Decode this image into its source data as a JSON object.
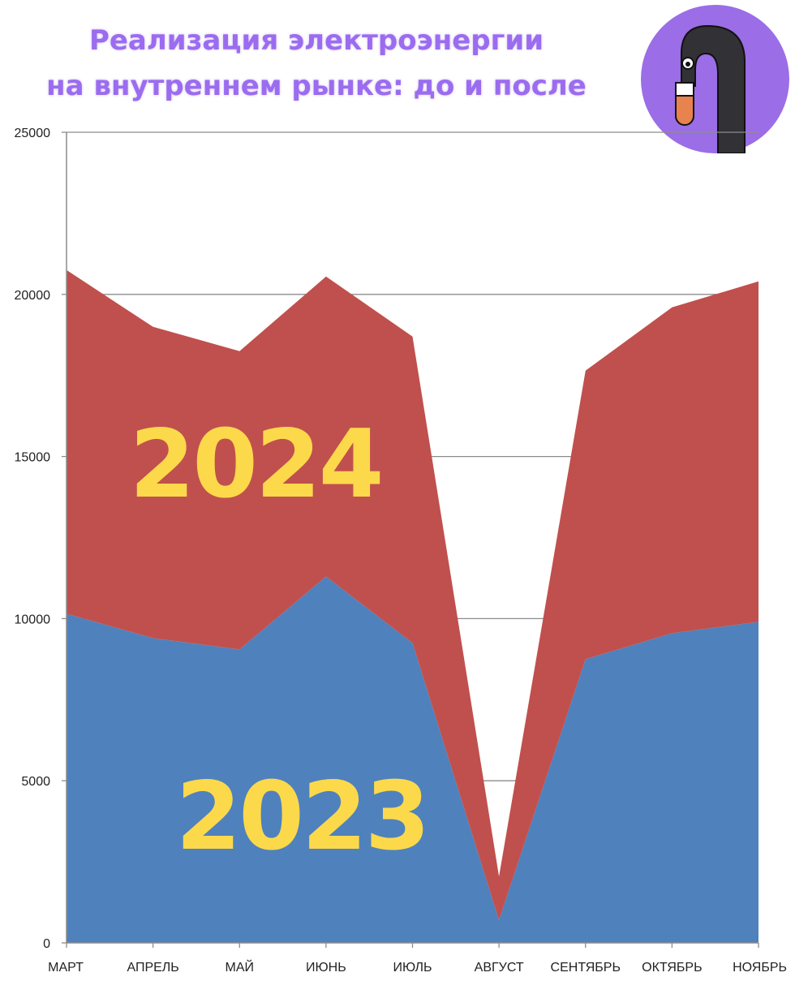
{
  "header": {
    "title_line1": "Реализация электроэнергии",
    "title_line2": "на внутреннем рынке: до и после"
  },
  "logo": {
    "icon": "flamingo-logo-icon",
    "circle_color": "#9b6de6"
  },
  "chart_data": {
    "type": "area",
    "stacked": true,
    "categories": [
      "МАРТ",
      "АПРЕЛЬ",
      "МАЙ",
      "ИЮНЬ",
      "ИЮЛЬ",
      "АВГУСТ",
      "СЕНТЯБРЬ",
      "ОКТЯБРЬ",
      "НОЯБРЬ"
    ],
    "series": [
      {
        "name": "2023",
        "color": "#4f81bd",
        "values": [
          10150,
          9400,
          9050,
          11300,
          9250,
          700,
          8750,
          9550,
          9900
        ]
      },
      {
        "name": "2024",
        "color": "#c0504d",
        "values": [
          10600,
          9600,
          9200,
          9250,
          9450,
          1350,
          8900,
          10050,
          10500
        ]
      }
    ],
    "ylim": [
      0,
      25000
    ],
    "yticks": [
      0,
      5000,
      10000,
      15000,
      20000,
      25000
    ],
    "grid": true,
    "label_color": "#fcd94b",
    "title": "Реализация электроэнергии на внутреннем рынке: до и после",
    "xlabel": "",
    "ylabel": ""
  }
}
